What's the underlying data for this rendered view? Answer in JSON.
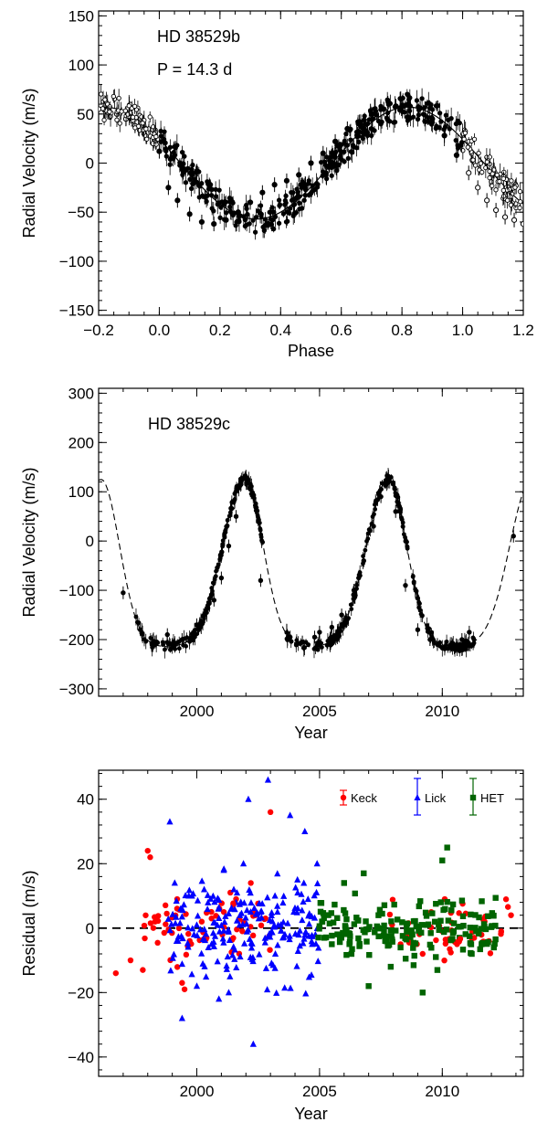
{
  "chart_data": [
    {
      "type": "scatter",
      "xlabel": "Phase",
      "ylabel": "Radial Velocity (m/s)",
      "xlim": [
        -0.2,
        1.2
      ],
      "ylim": [
        -155,
        155
      ],
      "xticks": [
        "−0.2",
        "0.0",
        "0.2",
        "0.4",
        "0.6",
        "0.8",
        "1.0",
        "1.2"
      ],
      "xtick_values": [
        -0.2,
        0,
        0.2,
        0.4,
        0.6,
        0.8,
        1.0,
        1.2
      ],
      "yticks": [
        "−150",
        "−100",
        "−50",
        "0",
        "50",
        "100",
        "150"
      ],
      "ytick_values": [
        -150,
        -100,
        -50,
        0,
        50,
        100,
        150
      ],
      "annotations": [
        "HD 38529b",
        "P = 14.3 d"
      ],
      "model": "sinusoid, amplitude ~57 m/s, peak near phase 0.82, minimum near phase 0.2",
      "series": [
        {
          "marker": "filled circle with error bars (phase 0 to 1)",
          "x": [
            0.0,
            0.03,
            0.06,
            0.1,
            0.14,
            0.18,
            0.22,
            0.26,
            0.3,
            0.34,
            0.38,
            0.42,
            0.46,
            0.5,
            0.54,
            0.58,
            0.62,
            0.66,
            0.7,
            0.74,
            0.78,
            0.82,
            0.86,
            0.9,
            0.94,
            0.98
          ],
          "y": [
            12,
            -25,
            -38,
            -52,
            -60,
            -62,
            -58,
            -50,
            -40,
            -30,
            -22,
            -18,
            -12,
            0,
            10,
            22,
            35,
            42,
            50,
            55,
            58,
            60,
            56,
            45,
            28,
            8
          ]
        },
        {
          "marker": "open circle with error bars (wrapped phases)",
          "x": [
            -0.2,
            -0.17,
            -0.14,
            -0.11,
            -0.08,
            -0.05,
            -0.02,
            1.02,
            1.05,
            1.08,
            1.11,
            1.14,
            1.17,
            1.2
          ],
          "y": [
            55,
            52,
            50,
            45,
            38,
            30,
            20,
            -10,
            -25,
            -38,
            -48,
            -55,
            -58,
            -62
          ]
        }
      ]
    },
    {
      "type": "scatter",
      "xlabel": "Year",
      "ylabel": "Radial Velocity (m/s)",
      "xlim": [
        1996,
        2013.3
      ],
      "ylim": [
        -315,
        310
      ],
      "xticks": [
        "2000",
        "2005",
        "2010"
      ],
      "xtick_values": [
        2000,
        2005,
        2010
      ],
      "yticks": [
        "−300",
        "−200",
        "−100",
        "0",
        "100",
        "200",
        "300"
      ],
      "ytick_values": [
        -300,
        -200,
        -100,
        0,
        100,
        200,
        300
      ],
      "annotations": [
        "HD 38529c"
      ],
      "model": "eccentric orbit, dashed line, maxima ~125 m/s near 2001.9 and 2007.8, minima ~-215 m/s",
      "series": [
        {
          "marker": "filled circle with error bars",
          "x": [
            1997.0,
            1997.7,
            1998.3,
            1998.8,
            1999.0,
            1999.4,
            2000.0,
            2000.3,
            2000.7,
            2001.0,
            2001.3,
            2001.6,
            2001.8,
            2002.0,
            2002.3,
            2002.6,
            2003.8,
            2004.3,
            2004.8,
            2005.0,
            2005.5,
            2005.9,
            2006.4,
            2006.8,
            2007.2,
            2007.5,
            2007.8,
            2008.1,
            2008.5,
            2009.0,
            2009.5,
            2009.8,
            2010.1,
            2010.4,
            2010.8,
            2011.1,
            2012.9
          ],
          "y": [
            -105,
            -180,
            -205,
            -190,
            -210,
            -200,
            -170,
            -150,
            -120,
            -75,
            -10,
            50,
            115,
            130,
            90,
            -80,
            -195,
            -205,
            -195,
            -185,
            -175,
            -150,
            -100,
            -40,
            30,
            90,
            120,
            60,
            -90,
            -180,
            -200,
            -210,
            -215,
            -210,
            -200,
            -185,
            10
          ]
        }
      ]
    },
    {
      "type": "scatter",
      "xlabel": "Year",
      "ylabel": "Residual (m/s)",
      "xlim": [
        1996,
        2013.3
      ],
      "ylim": [
        -46,
        49
      ],
      "xticks": [
        "2000",
        "2005",
        "2010"
      ],
      "xtick_values": [
        2000,
        2005,
        2010
      ],
      "yticks": [
        "−40",
        "−20",
        "0",
        "20",
        "40"
      ],
      "ytick_values": [
        -40,
        -20,
        0,
        20,
        40
      ],
      "zero_line": "dashed",
      "legend_position": "top-right",
      "series": [
        {
          "name": "Keck",
          "color": "#ff0000",
          "marker": "circle",
          "x": [
            1996.7,
            1997.3,
            1997.8,
            1998.0,
            1998.1,
            1998.3,
            1999.2,
            1999.4,
            1999.5,
            2000.2,
            2000.4,
            2000.6,
            2001.1,
            2001.6,
            2001.9,
            2002.2,
            2002.8,
            2003.0,
            2008.3,
            2009.2,
            2010.1,
            2010.6,
            2011.3,
            2011.9,
            2012.4,
            2012.8
          ],
          "y": [
            -14,
            -10,
            -13,
            24,
            22,
            2,
            9,
            -17,
            -19,
            2,
            -3,
            3,
            5,
            9,
            2,
            14,
            3,
            36,
            -5,
            -8,
            9,
            -5,
            -3,
            -4,
            -1,
            4
          ]
        },
        {
          "name": "Lick",
          "color": "#0000ff",
          "marker": "triangle",
          "x": [
            1998.9,
            1999.1,
            1999.4,
            1999.8,
            2000.0,
            2000.3,
            2000.6,
            2000.9,
            2001.1,
            2001.3,
            2001.6,
            2001.9,
            2002.1,
            2002.3,
            2002.6,
            2002.9,
            2003.2,
            2003.5,
            2003.8,
            2004.1,
            2004.4,
            2004.7,
            2004.9
          ],
          "y": [
            33,
            14,
            -28,
            10,
            -18,
            12,
            -5,
            -22,
            18,
            -20,
            8,
            20,
            40,
            -36,
            5,
            46,
            -8,
            -3,
            35,
            15,
            30,
            -5,
            20
          ]
        },
        {
          "name": "HET",
          "color": "#006400",
          "marker": "square",
          "x": [
            2005.1,
            2005.5,
            2006.0,
            2006.3,
            2006.8,
            2007.0,
            2007.4,
            2007.9,
            2008.3,
            2008.7,
            2009.2,
            2009.8,
            2010.0,
            2010.2,
            2010.7,
            2011.2,
            2011.6,
            2012.1
          ],
          "y": [
            2,
            -5,
            14,
            -8,
            17,
            -18,
            4,
            -12,
            -6,
            -3,
            -20,
            -13,
            21,
            25,
            -3,
            -8,
            -5,
            -6
          ]
        }
      ]
    }
  ]
}
